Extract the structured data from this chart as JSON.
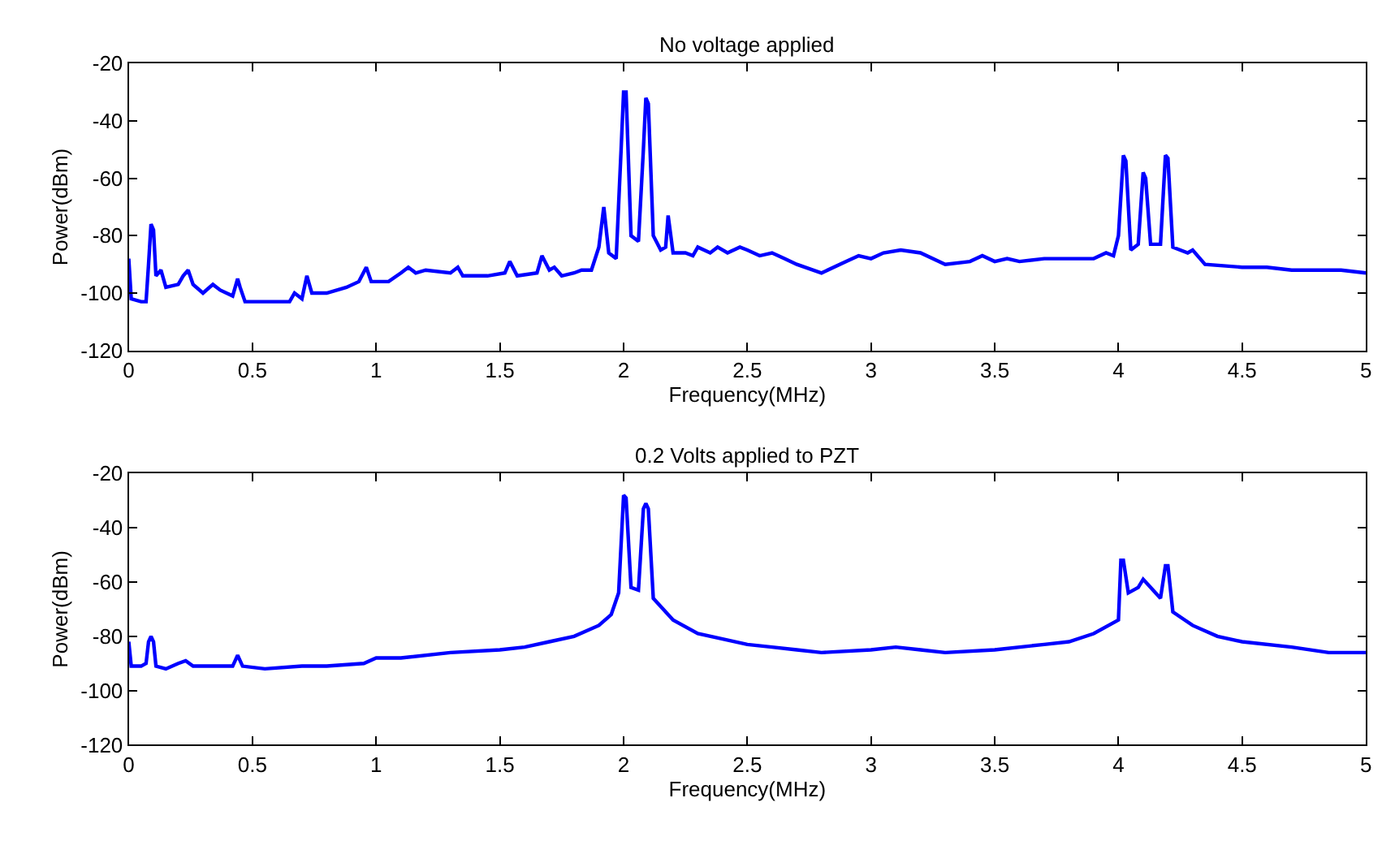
{
  "chart_data": [
    {
      "type": "line",
      "title": "No voltage applied",
      "xlabel": "Frequency(MHz)",
      "ylabel": "Power(dBm)",
      "xlim": [
        0,
        5
      ],
      "xticks": [
        0,
        0.5,
        1,
        1.5,
        2,
        2.5,
        3,
        3.5,
        4,
        4.5,
        5
      ],
      "ylim": [
        -120,
        -20
      ],
      "yticks": [
        -120,
        -100,
        -80,
        -60,
        -40,
        -20
      ],
      "marker": "none",
      "line_style": "solid",
      "series": [
        {
          "color": "#0000ff",
          "x": [
            0,
            0.01,
            0.05,
            0.07,
            0.08,
            0.09,
            0.1,
            0.11,
            0.13,
            0.15,
            0.2,
            0.22,
            0.24,
            0.26,
            0.3,
            0.34,
            0.37,
            0.42,
            0.44,
            0.45,
            0.47,
            0.55,
            0.65,
            0.67,
            0.7,
            0.72,
            0.74,
            0.8,
            0.88,
            0.93,
            0.96,
            0.98,
            1.05,
            1.1,
            1.13,
            1.16,
            1.2,
            1.3,
            1.33,
            1.35,
            1.45,
            1.52,
            1.54,
            1.57,
            1.65,
            1.67,
            1.7,
            1.72,
            1.75,
            1.8,
            1.83,
            1.87,
            1.9,
            1.92,
            1.94,
            1.97,
            1.99,
            2.0,
            2.01,
            2.03,
            2.06,
            2.08,
            2.09,
            2.1,
            2.12,
            2.15,
            2.17,
            2.18,
            2.2,
            2.25,
            2.28,
            2.3,
            2.35,
            2.38,
            2.42,
            2.47,
            2.5,
            2.55,
            2.6,
            2.65,
            2.7,
            2.8,
            2.9,
            2.95,
            3.0,
            3.05,
            3.12,
            3.2,
            3.3,
            3.4,
            3.45,
            3.5,
            3.55,
            3.6,
            3.7,
            3.8,
            3.9,
            3.95,
            3.98,
            4.0,
            4.02,
            4.03,
            4.05,
            4.08,
            4.1,
            4.11,
            4.13,
            4.17,
            4.19,
            4.2,
            4.22,
            4.28,
            4.3,
            4.35,
            4.5,
            4.6,
            4.7,
            4.8,
            4.9,
            5.0
          ],
          "values": [
            -88,
            -102,
            -103,
            -103,
            -90,
            -76,
            -78,
            -94,
            -92,
            -98,
            -97,
            -94,
            -92,
            -97,
            -100,
            -97,
            -99,
            -101,
            -95,
            -98,
            -103,
            -103,
            -103,
            -100,
            -102,
            -94,
            -100,
            -100,
            -98,
            -96,
            -91,
            -96,
            -96,
            -93,
            -91,
            -93,
            -92,
            -93,
            -91,
            -94,
            -94,
            -93,
            -89,
            -94,
            -93,
            -87,
            -92,
            -91,
            -94,
            -93,
            -92,
            -92,
            -84,
            -70,
            -86,
            -88,
            -50,
            -30,
            -30,
            -80,
            -82,
            -50,
            -32,
            -34,
            -80,
            -85,
            -84,
            -73,
            -86,
            -86,
            -87,
            -84,
            -86,
            -84,
            -86,
            -84,
            -85,
            -87,
            -86,
            -88,
            -90,
            -93,
            -89,
            -87,
            -88,
            -86,
            -85,
            -86,
            -90,
            -89,
            -87,
            -89,
            -88,
            -89,
            -88,
            -88,
            -88,
            -86,
            -87,
            -80,
            -52,
            -54,
            -85,
            -83,
            -58,
            -60,
            -83,
            -83,
            -52,
            -53,
            -84,
            -86,
            -85,
            -90,
            -91,
            -91,
            -92,
            -92,
            -92,
            -93
          ]
        }
      ]
    },
    {
      "type": "line",
      "title": "0.2 Volts applied to PZT",
      "xlabel": "Frequency(MHz)",
      "ylabel": "Power(dBm)",
      "xlim": [
        0,
        5
      ],
      "xticks": [
        0,
        0.5,
        1,
        1.5,
        2,
        2.5,
        3,
        3.5,
        4,
        4.5,
        5
      ],
      "ylim": [
        -120,
        -20
      ],
      "yticks": [
        -120,
        -100,
        -80,
        -60,
        -40,
        -20
      ],
      "marker": "none",
      "line_style": "solid",
      "series": [
        {
          "color": "#0000ff",
          "x": [
            0,
            0.01,
            0.05,
            0.07,
            0.08,
            0.09,
            0.1,
            0.11,
            0.15,
            0.2,
            0.23,
            0.26,
            0.35,
            0.42,
            0.44,
            0.46,
            0.55,
            0.7,
            0.8,
            0.95,
            1.0,
            1.1,
            1.3,
            1.5,
            1.6,
            1.7,
            1.8,
            1.9,
            1.95,
            1.98,
            2.0,
            2.01,
            2.03,
            2.06,
            2.08,
            2.09,
            2.1,
            2.12,
            2.2,
            2.3,
            2.4,
            2.5,
            2.6,
            2.7,
            2.8,
            3.0,
            3.1,
            3.2,
            3.3,
            3.5,
            3.7,
            3.8,
            3.9,
            4.0,
            4.01,
            4.02,
            4.04,
            4.08,
            4.1,
            4.12,
            4.17,
            4.19,
            4.2,
            4.22,
            4.3,
            4.4,
            4.5,
            4.7,
            4.85,
            5.0
          ],
          "values": [
            -82,
            -91,
            -91,
            -90,
            -82,
            -80,
            -82,
            -91,
            -92,
            -90,
            -89,
            -91,
            -91,
            -91,
            -87,
            -91,
            -92,
            -91,
            -91,
            -90,
            -88,
            -88,
            -86,
            -85,
            -84,
            -82,
            -80,
            -76,
            -72,
            -64,
            -28,
            -29,
            -62,
            -63,
            -33,
            -31,
            -33,
            -66,
            -74,
            -79,
            -81,
            -83,
            -84,
            -85,
            -86,
            -85,
            -84,
            -85,
            -86,
            -85,
            -83,
            -82,
            -79,
            -74,
            -52,
            -52,
            -64,
            -62,
            -59,
            -61,
            -66,
            -54,
            -54,
            -71,
            -76,
            -80,
            -82,
            -84,
            -86,
            -86
          ]
        }
      ]
    }
  ]
}
